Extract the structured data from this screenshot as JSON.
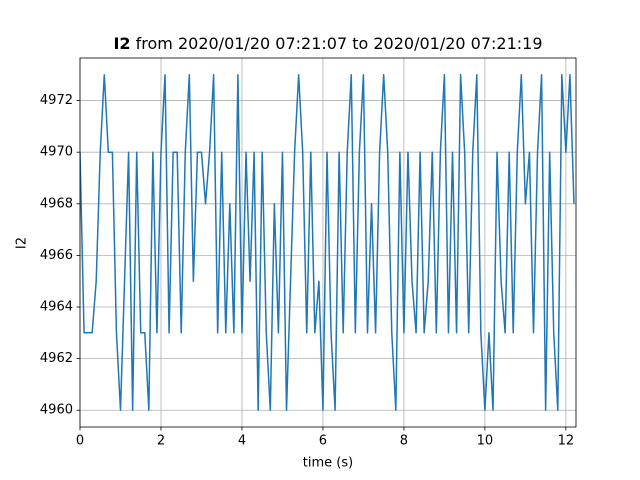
{
  "chart_data": {
    "type": "line",
    "title": [
      "I2",
      "from 2020/01/20 07:21:07 to 2020/01/20 07:21:19"
    ],
    "xlabel": "time (s)",
    "ylabel": "I2",
    "color": "#1f77b4",
    "grid": true,
    "xlim": [
      0,
      12.25
    ],
    "ylim": [
      4959.35,
      4973.65
    ],
    "xticks": [
      0,
      2,
      4,
      6,
      8,
      10,
      12
    ],
    "yticks": [
      4960,
      4962,
      4964,
      4966,
      4968,
      4970,
      4972
    ],
    "x": [
      0,
      0.1,
      0.2,
      0.3,
      0.4,
      0.5,
      0.6,
      0.7,
      0.8,
      0.9,
      1.0,
      1.1,
      1.2,
      1.3,
      1.4,
      1.5,
      1.6,
      1.7,
      1.8,
      1.9,
      2.0,
      2.1,
      2.2,
      2.3,
      2.4,
      2.5,
      2.6,
      2.7,
      2.8,
      2.9,
      3.0,
      3.1,
      3.2,
      3.3,
      3.4,
      3.5,
      3.6,
      3.7,
      3.8,
      3.9,
      4.0,
      4.1,
      4.2,
      4.3,
      4.4,
      4.5,
      4.6,
      4.7,
      4.8,
      4.9,
      5.0,
      5.1,
      5.2,
      5.3,
      5.4,
      5.5,
      5.6,
      5.7,
      5.8,
      5.9,
      6.0,
      6.1,
      6.2,
      6.3,
      6.4,
      6.5,
      6.6,
      6.7,
      6.8,
      6.9,
      7.0,
      7.1,
      7.2,
      7.3,
      7.4,
      7.5,
      7.6,
      7.7,
      7.8,
      7.9,
      8.0,
      8.1,
      8.2,
      8.3,
      8.4,
      8.5,
      8.6,
      8.7,
      8.8,
      8.9,
      9.0,
      9.1,
      9.2,
      9.3,
      9.4,
      9.5,
      9.6,
      9.7,
      9.8,
      9.9,
      10.0,
      10.1,
      10.2,
      10.3,
      10.4,
      10.5,
      10.6,
      10.7,
      10.8,
      10.9,
      11.0,
      11.1,
      11.2,
      11.3,
      11.4,
      11.5,
      11.6,
      11.7,
      11.8,
      11.9,
      12.0,
      12.1,
      12.2
    ],
    "values": [
      4970,
      4963,
      4963,
      4963,
      4965,
      4970,
      4973,
      4970,
      4970,
      4963,
      4960,
      4965,
      4970,
      4960,
      4970,
      4963,
      4963,
      4960,
      4970,
      4963,
      4970,
      4973,
      4963,
      4970,
      4970,
      4963,
      4970,
      4973,
      4965,
      4970,
      4970,
      4968,
      4970,
      4973,
      4963,
      4970,
      4963,
      4968,
      4963,
      4973,
      4963,
      4970,
      4965,
      4970,
      4960,
      4970,
      4963,
      4960,
      4968,
      4963,
      4970,
      4960,
      4965,
      4970,
      4973,
      4970,
      4963,
      4970,
      4963,
      4965,
      4960,
      4970,
      4963,
      4960,
      4970,
      4963,
      4970,
      4973,
      4963,
      4970,
      4973,
      4963,
      4968,
      4963,
      4970,
      4973,
      4970,
      4963,
      4960,
      4970,
      4963,
      4970,
      4965,
      4963,
      4970,
      4963,
      4965,
      4970,
      4963,
      4970,
      4973,
      4963,
      4970,
      4963,
      4973,
      4970,
      4963,
      4970,
      4973,
      4963,
      4960,
      4963,
      4960,
      4970,
      4965,
      4963,
      4970,
      4963,
      4970,
      4973,
      4968,
      4970,
      4963,
      4970,
      4973,
      4960,
      4970,
      4963,
      4960,
      4973,
      4970,
      4973,
      4968
    ]
  }
}
